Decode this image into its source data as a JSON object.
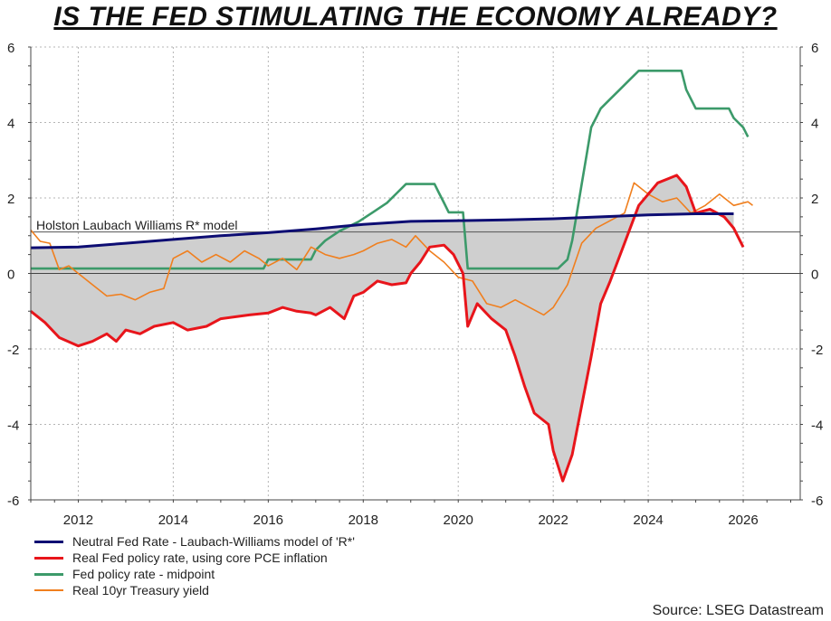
{
  "chart_data": {
    "type": "line",
    "title": "IS THE FED STIMULATING THE ECONOMY ALREADY?",
    "source": "Source: LSEG Datastream",
    "annotation": "Holston Laubach Williams R* model",
    "annotation_value": 1.1,
    "xlim": [
      2011.0,
      2027.2
    ],
    "ylim": [
      -6,
      6
    ],
    "x_ticks": [
      2012,
      2014,
      2016,
      2018,
      2020,
      2022,
      2024,
      2026
    ],
    "x_tick_labels": [
      "2012",
      "2014",
      "2016",
      "2018",
      "2020",
      "2022",
      "2024",
      "2026"
    ],
    "y_ticks": [
      -6,
      -4,
      -2,
      0,
      2,
      4,
      6
    ],
    "y_tick_labels": [
      "-6",
      "-4",
      "-2",
      "0",
      "2",
      "4",
      "6"
    ],
    "grid": true,
    "shading": "gray area between Neutral Fed Rate and Real Fed policy rate",
    "colors": {
      "neutral": "#0d0d73",
      "real_fed": "#e8151b",
      "fed_policy": "#3c9a6a",
      "treasury": "#f07f1e",
      "fill": "#cfcfcf"
    },
    "series": [
      {
        "name": "Neutral Fed Rate - Laubach-Williams model of 'R*'",
        "key": "neutral",
        "points": [
          [
            2011.0,
            0.68
          ],
          [
            2012.0,
            0.7
          ],
          [
            2013.0,
            0.8
          ],
          [
            2014.0,
            0.9
          ],
          [
            2015.0,
            1.0
          ],
          [
            2016.0,
            1.08
          ],
          [
            2017.0,
            1.18
          ],
          [
            2018.0,
            1.3
          ],
          [
            2019.0,
            1.38
          ],
          [
            2020.0,
            1.4
          ],
          [
            2021.0,
            1.42
          ],
          [
            2022.0,
            1.45
          ],
          [
            2023.0,
            1.5
          ],
          [
            2024.0,
            1.55
          ],
          [
            2025.0,
            1.58
          ],
          [
            2025.8,
            1.58
          ]
        ]
      },
      {
        "name": "Real Fed policy rate, using core PCE inflation",
        "key": "real_fed",
        "points": [
          [
            2011.0,
            -1.0
          ],
          [
            2011.3,
            -1.3
          ],
          [
            2011.6,
            -1.7
          ],
          [
            2012.0,
            -1.92
          ],
          [
            2012.3,
            -1.8
          ],
          [
            2012.6,
            -1.6
          ],
          [
            2012.8,
            -1.8
          ],
          [
            2013.0,
            -1.5
          ],
          [
            2013.3,
            -1.6
          ],
          [
            2013.6,
            -1.4
          ],
          [
            2014.0,
            -1.3
          ],
          [
            2014.3,
            -1.5
          ],
          [
            2014.7,
            -1.4
          ],
          [
            2015.0,
            -1.2
          ],
          [
            2015.3,
            -1.15
          ],
          [
            2015.6,
            -1.1
          ],
          [
            2016.0,
            -1.05
          ],
          [
            2016.3,
            -0.9
          ],
          [
            2016.6,
            -1.0
          ],
          [
            2016.9,
            -1.05
          ],
          [
            2017.0,
            -1.1
          ],
          [
            2017.3,
            -0.9
          ],
          [
            2017.6,
            -1.2
          ],
          [
            2017.8,
            -0.6
          ],
          [
            2018.0,
            -0.5
          ],
          [
            2018.3,
            -0.2
          ],
          [
            2018.6,
            -0.3
          ],
          [
            2018.9,
            -0.25
          ],
          [
            2019.0,
            0.0
          ],
          [
            2019.2,
            0.3
          ],
          [
            2019.4,
            0.7
          ],
          [
            2019.7,
            0.75
          ],
          [
            2019.9,
            0.5
          ],
          [
            2020.1,
            0.0
          ],
          [
            2020.2,
            -1.4
          ],
          [
            2020.4,
            -0.8
          ],
          [
            2020.7,
            -1.2
          ],
          [
            2021.0,
            -1.5
          ],
          [
            2021.2,
            -2.2
          ],
          [
            2021.4,
            -3.0
          ],
          [
            2021.6,
            -3.7
          ],
          [
            2021.9,
            -4.0
          ],
          [
            2022.0,
            -4.7
          ],
          [
            2022.2,
            -5.5
          ],
          [
            2022.4,
            -4.8
          ],
          [
            2022.6,
            -3.5
          ],
          [
            2022.8,
            -2.2
          ],
          [
            2023.0,
            -0.8
          ],
          [
            2023.2,
            -0.2
          ],
          [
            2023.5,
            0.8
          ],
          [
            2023.8,
            1.8
          ],
          [
            2024.0,
            2.1
          ],
          [
            2024.2,
            2.4
          ],
          [
            2024.4,
            2.5
          ],
          [
            2024.6,
            2.6
          ],
          [
            2024.8,
            2.3
          ],
          [
            2025.0,
            1.6
          ],
          [
            2025.3,
            1.7
          ],
          [
            2025.6,
            1.5
          ],
          [
            2025.8,
            1.2
          ],
          [
            2026.0,
            0.7
          ]
        ]
      },
      {
        "name": "Fed policy rate - midpoint",
        "key": "fed_policy",
        "points": [
          [
            2011.0,
            0.13
          ],
          [
            2015.9,
            0.13
          ],
          [
            2016.0,
            0.37
          ],
          [
            2016.9,
            0.37
          ],
          [
            2017.0,
            0.62
          ],
          [
            2017.2,
            0.87
          ],
          [
            2017.5,
            1.12
          ],
          [
            2017.9,
            1.37
          ],
          [
            2018.2,
            1.62
          ],
          [
            2018.5,
            1.87
          ],
          [
            2018.7,
            2.12
          ],
          [
            2018.9,
            2.37
          ],
          [
            2019.5,
            2.37
          ],
          [
            2019.6,
            2.12
          ],
          [
            2019.7,
            1.87
          ],
          [
            2019.8,
            1.62
          ],
          [
            2020.1,
            1.62
          ],
          [
            2020.2,
            0.13
          ],
          [
            2022.1,
            0.13
          ],
          [
            2022.3,
            0.37
          ],
          [
            2022.4,
            0.87
          ],
          [
            2022.5,
            1.62
          ],
          [
            2022.6,
            2.37
          ],
          [
            2022.7,
            3.12
          ],
          [
            2022.8,
            3.87
          ],
          [
            2022.9,
            4.12
          ],
          [
            2023.0,
            4.37
          ],
          [
            2023.2,
            4.62
          ],
          [
            2023.4,
            4.87
          ],
          [
            2023.6,
            5.12
          ],
          [
            2023.8,
            5.37
          ],
          [
            2024.7,
            5.37
          ],
          [
            2024.8,
            4.87
          ],
          [
            2024.9,
            4.62
          ],
          [
            2025.0,
            4.37
          ],
          [
            2025.7,
            4.37
          ],
          [
            2025.8,
            4.12
          ],
          [
            2026.0,
            3.87
          ],
          [
            2026.1,
            3.62
          ]
        ]
      },
      {
        "name": "Real 10yr Treasury yield",
        "key": "treasury",
        "points": [
          [
            2011.0,
            1.15
          ],
          [
            2011.2,
            0.85
          ],
          [
            2011.4,
            0.8
          ],
          [
            2011.6,
            0.1
          ],
          [
            2011.8,
            0.2
          ],
          [
            2012.0,
            0.0
          ],
          [
            2012.3,
            -0.3
          ],
          [
            2012.6,
            -0.6
          ],
          [
            2012.9,
            -0.55
          ],
          [
            2013.2,
            -0.7
          ],
          [
            2013.5,
            -0.5
          ],
          [
            2013.8,
            -0.4
          ],
          [
            2014.0,
            0.4
          ],
          [
            2014.3,
            0.6
          ],
          [
            2014.6,
            0.3
          ],
          [
            2014.9,
            0.5
          ],
          [
            2015.2,
            0.3
          ],
          [
            2015.5,
            0.6
          ],
          [
            2015.8,
            0.4
          ],
          [
            2016.0,
            0.2
          ],
          [
            2016.3,
            0.4
          ],
          [
            2016.6,
            0.1
          ],
          [
            2016.9,
            0.7
          ],
          [
            2017.2,
            0.5
          ],
          [
            2017.5,
            0.4
          ],
          [
            2017.8,
            0.5
          ],
          [
            2018.0,
            0.6
          ],
          [
            2018.3,
            0.8
          ],
          [
            2018.6,
            0.9
          ],
          [
            2018.9,
            0.7
          ],
          [
            2019.1,
            1.0
          ],
          [
            2019.4,
            0.6
          ],
          [
            2019.7,
            0.3
          ],
          [
            2020.0,
            -0.1
          ],
          [
            2020.3,
            -0.2
          ],
          [
            2020.6,
            -0.8
          ],
          [
            2020.9,
            -0.9
          ],
          [
            2021.2,
            -0.7
          ],
          [
            2021.5,
            -0.9
          ],
          [
            2021.8,
            -1.1
          ],
          [
            2022.0,
            -0.9
          ],
          [
            2022.3,
            -0.3
          ],
          [
            2022.6,
            0.8
          ],
          [
            2022.9,
            1.2
          ],
          [
            2023.2,
            1.4
          ],
          [
            2023.5,
            1.6
          ],
          [
            2023.7,
            2.4
          ],
          [
            2024.0,
            2.1
          ],
          [
            2024.3,
            1.9
          ],
          [
            2024.6,
            2.0
          ],
          [
            2024.9,
            1.6
          ],
          [
            2025.2,
            1.8
          ],
          [
            2025.5,
            2.1
          ],
          [
            2025.8,
            1.8
          ],
          [
            2026.1,
            1.9
          ],
          [
            2026.2,
            1.8
          ]
        ]
      }
    ]
  }
}
